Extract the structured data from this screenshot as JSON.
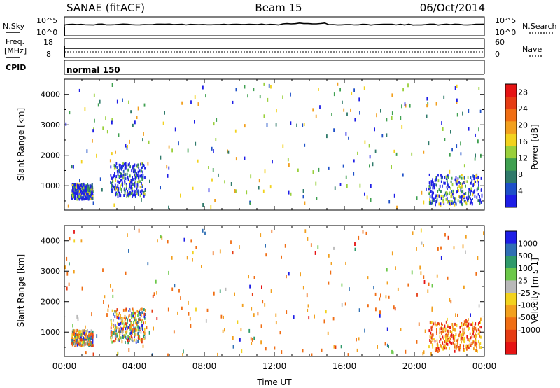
{
  "header": {
    "station": "SANAE (fitACF)",
    "beam": "Beam 15",
    "date": "06/Oct/2014"
  },
  "aux_panels": {
    "nsky": {
      "label": "N.Sky",
      "ticks": [
        "10^5",
        "10^0"
      ],
      "right_label": "N.Search",
      "right_ticks": [
        "10^5",
        "10^0"
      ]
    },
    "freq": {
      "label_top": "Freq.",
      "label_bottom": "[MHz]",
      "ticks": [
        "18",
        "8"
      ],
      "right_label": "Nave",
      "right_ticks": [
        "60",
        "0"
      ]
    },
    "cpid": {
      "label": "CPID",
      "value": "normal 150"
    }
  },
  "colors": {
    "power_scale": [
      "#1e1ee6",
      "#1e50c8",
      "#2f7a6a",
      "#3fa050",
      "#9ad03c",
      "#f2d21e",
      "#f2a01e",
      "#f06e14",
      "#e63c14",
      "#e61414"
    ],
    "velocity_scale": [
      "#1e1ee6",
      "#2f6fb4",
      "#2f9a6a",
      "#6cc84a",
      "#b8b8b8",
      "#f2d21e",
      "#f2a01e",
      "#f06e14",
      "#e63c14",
      "#e61414"
    ]
  },
  "chart_data": [
    {
      "type": "heatmap",
      "name": "power",
      "ylabel": "Slant Range [km]",
      "xlabel": "",
      "x_ticks": [
        "00:00",
        "04:00",
        "08:00",
        "12:00",
        "16:00",
        "20:00",
        "00:00"
      ],
      "y_ticks": [
        1000,
        2000,
        3000,
        4000
      ],
      "ylim": [
        200,
        4500
      ],
      "xlim": [
        0,
        24
      ],
      "colorbar_label": "Power [dB]",
      "colorbar_ticks": [
        "4",
        "8",
        "12",
        "16",
        "20",
        "24",
        "28"
      ],
      "colorbar_range": [
        0,
        30
      ],
      "scatter_regions": [
        {
          "t": [
            0.4,
            1.6
          ],
          "r": [
            600,
            1100
          ],
          "dense": true
        },
        {
          "t": [
            2.6,
            4.6
          ],
          "r": [
            700,
            1800
          ],
          "dense": true
        },
        {
          "t": [
            20.8,
            23.8
          ],
          "r": [
            400,
            1400
          ],
          "dense": true
        },
        {
          "t": [
            0,
            24
          ],
          "r": [
            300,
            4400
          ],
          "dense": false
        }
      ]
    },
    {
      "type": "heatmap",
      "name": "velocity",
      "ylabel": "Slant Range [km]",
      "xlabel": "Time UT",
      "x_ticks": [
        "00:00",
        "04:00",
        "08:00",
        "12:00",
        "16:00",
        "20:00",
        "00:00"
      ],
      "y_ticks": [
        1000,
        2000,
        3000,
        4000
      ],
      "ylim": [
        200,
        4500
      ],
      "xlim": [
        0,
        24
      ],
      "colorbar_label": "Velocity [m s-1]",
      "colorbar_ticks": [
        "1000",
        "500",
        "100",
        "25",
        "-25",
        "-100",
        "-500",
        "-1000"
      ],
      "scatter_regions": [
        {
          "t": [
            0.4,
            1.6
          ],
          "r": [
            600,
            1100
          ],
          "dense": true
        },
        {
          "t": [
            2.6,
            4.6
          ],
          "r": [
            700,
            1800
          ],
          "dense": true
        },
        {
          "t": [
            20.8,
            23.8
          ],
          "r": [
            400,
            1400
          ],
          "dense": true
        },
        {
          "t": [
            0,
            24
          ],
          "r": [
            300,
            4400
          ],
          "dense": false
        }
      ]
    }
  ]
}
